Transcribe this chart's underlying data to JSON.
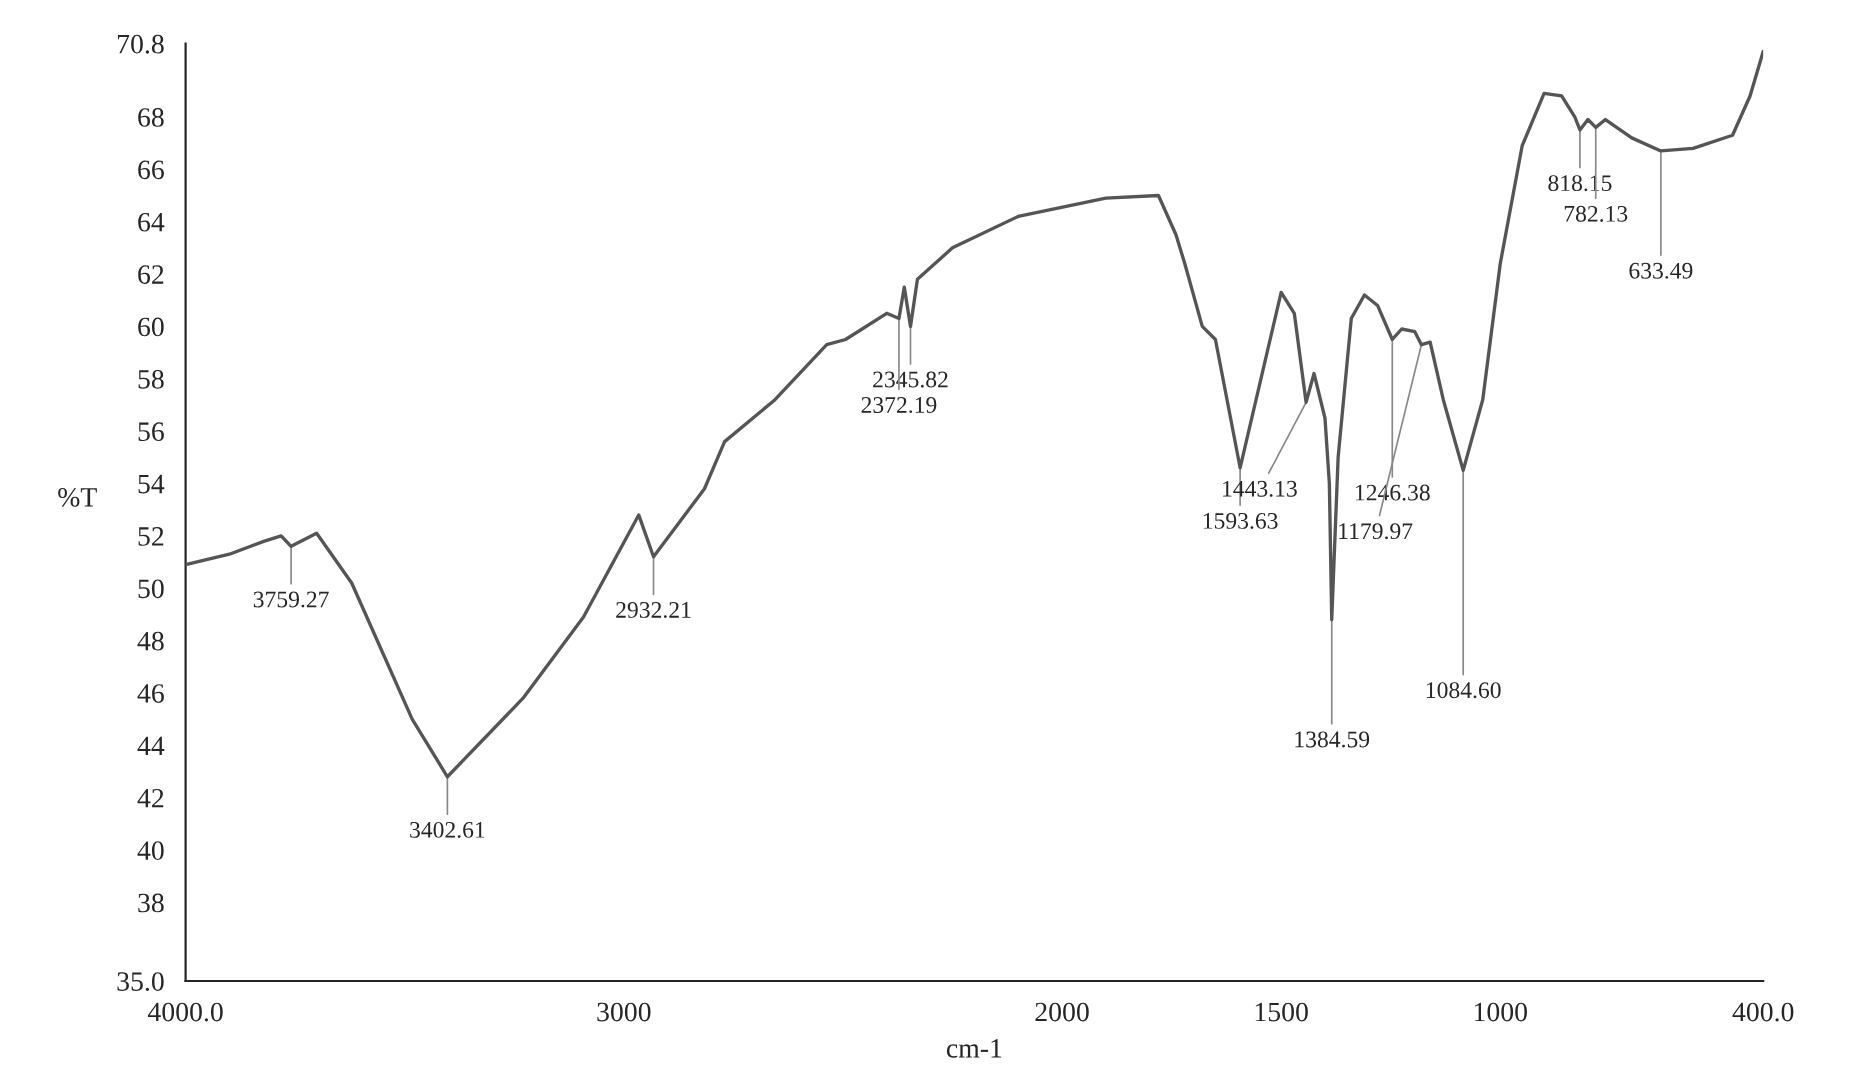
{
  "chart_data": {
    "type": "line",
    "xlabel": "cm-1",
    "ylabel": "%T",
    "x": [
      4000,
      3900,
      3820,
      3782,
      3759.27,
      3701,
      3621,
      3483,
      3402.61,
      3230,
      3092,
      2966,
      2932.21,
      2816,
      2770,
      2655,
      2537,
      2494,
      2400,
      2372.19,
      2360,
      2345.82,
      2330,
      2250,
      2100,
      1900,
      1780,
      1740,
      1720,
      1680,
      1650,
      1593.63,
      1500,
      1470,
      1443.13,
      1425,
      1400,
      1390,
      1384.59,
      1370,
      1340,
      1310,
      1280,
      1246.38,
      1225,
      1195,
      1179.97,
      1160,
      1130,
      1084.6,
      1040,
      1000,
      950,
      900,
      860,
      830,
      818.15,
      800,
      782.13,
      760,
      700,
      633.49,
      560,
      470,
      430,
      400
    ],
    "series": [
      {
        "color": "#555555",
        "values": [
          50.9,
          51.3,
          51.8,
          52.0,
          51.6,
          52.1,
          50.2,
          45.0,
          42.8,
          45.8,
          48.9,
          52.8,
          51.2,
          53.8,
          55.6,
          57.2,
          59.3,
          59.5,
          60.5,
          60.3,
          61.5,
          60.0,
          61.8,
          63.0,
          64.2,
          64.9,
          65.0,
          63.5,
          62.4,
          60.0,
          59.5,
          54.6,
          61.3,
          60.5,
          57.1,
          58.2,
          56.5,
          54.0,
          48.8,
          55.0,
          60.3,
          61.2,
          60.8,
          59.5,
          59.9,
          59.8,
          59.3,
          59.4,
          57.2,
          54.5,
          57.2,
          62.4,
          66.9,
          68.9,
          68.8,
          68.0,
          67.5,
          67.9,
          67.6,
          67.9,
          67.2,
          66.7,
          66.8,
          67.3,
          68.8,
          70.5
        ]
      }
    ],
    "xlim": [
      4000,
      400
    ],
    "xticks": [
      {
        "value": 4000,
        "label": "4000.0"
      },
      3000,
      2000,
      1500,
      1000,
      {
        "value": 400,
        "label": "400.0"
      }
    ],
    "ylim": [
      35,
      70.8
    ],
    "yticks": [
      {
        "value": 35,
        "label": "35.0"
      },
      38,
      40,
      42,
      44,
      46,
      48,
      50,
      52,
      54,
      56,
      58,
      60,
      62,
      64,
      66,
      68,
      {
        "value": 70.8,
        "label": "70.8"
      }
    ],
    "grid": false,
    "legend": false,
    "marker": "none",
    "line_style": "solid",
    "annotations": [
      {
        "text": "3759.27",
        "x": 3759.27,
        "y": 51.6
      },
      {
        "text": "3402.61",
        "x": 3402.61,
        "y": 42.8
      },
      {
        "text": "2932.21",
        "x": 2932.21,
        "y": 51.2
      },
      {
        "text": "2345.82",
        "x": 2345.82,
        "y": 60.0
      },
      {
        "text": "2372.19",
        "x": 2372.19,
        "y": 60.3
      },
      {
        "text": "1593.63",
        "x": 1593.63,
        "y": 54.6
      },
      {
        "text": "1443.13",
        "x": 1443.13,
        "y": 57.1
      },
      {
        "text": "1384.59",
        "x": 1384.59,
        "y": 48.8
      },
      {
        "text": "1246.38",
        "x": 1246.38,
        "y": 59.5
      },
      {
        "text": "1179.97",
        "x": 1179.97,
        "y": 59.3
      },
      {
        "text": "1084.60",
        "x": 1084.6,
        "y": 54.5
      },
      {
        "text": "818.15",
        "x": 818.15,
        "y": 67.5
      },
      {
        "text": "782.13",
        "x": 782.13,
        "y": 67.6
      },
      {
        "text": "633.49",
        "x": 633.49,
        "y": 66.7
      }
    ]
  }
}
